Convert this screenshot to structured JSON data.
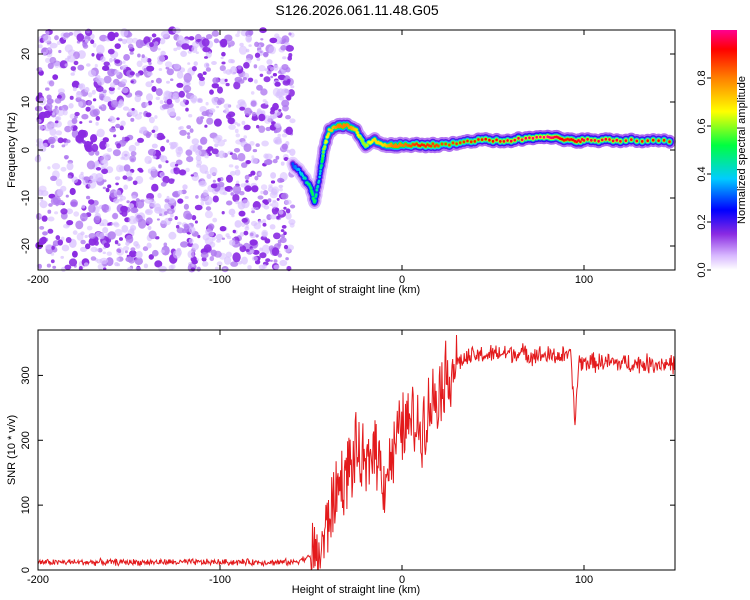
{
  "title": "S126.2026.061.11.48.G05",
  "colors": {
    "snr_line": "#e31a1c",
    "scatter_point": "#8a2be2"
  },
  "chart_data": [
    {
      "type": "heatmap",
      "title": "S126.2026.061.11.48.G05",
      "xlabel": "Height of straight line (km)",
      "ylabel": "Frequency (Hz)",
      "xlim": [
        -200,
        150
      ],
      "ylim": [
        -25,
        25
      ],
      "xticks": [
        -200,
        -100,
        0,
        100
      ],
      "yticks": [
        -20,
        -10,
        0,
        10,
        20
      ],
      "colorbar": {
        "label": "Normalized spectral amplitude",
        "range": [
          0,
          1
        ],
        "ticks": [
          "0.0",
          "0.2",
          "0.4",
          "0.6",
          "0.8"
        ]
      },
      "noise_region_x": [
        -200,
        -60
      ],
      "signal_track": {
        "x": [
          -60,
          -55,
          -50,
          -48,
          -45,
          -43,
          -40,
          -35,
          -30,
          -25,
          -22,
          -20,
          -15,
          -10,
          -5,
          0,
          10,
          20,
          40,
          60,
          80,
          90,
          100,
          120,
          150
        ],
        "freq": [
          -3,
          -5,
          -8,
          -11,
          -5,
          0,
          4,
          5,
          5,
          4,
          2,
          1,
          2,
          1,
          1,
          1,
          1,
          1,
          2,
          2,
          3,
          2,
          2,
          2,
          2
        ],
        "amplitude": [
          0.3,
          0.4,
          0.5,
          0.5,
          0.4,
          0.6,
          0.7,
          0.8,
          0.8,
          0.7,
          0.6,
          0.6,
          0.7,
          0.7,
          0.8,
          0.8,
          0.9,
          0.85,
          0.9,
          0.95,
          1.0,
          0.9,
          0.95,
          0.95,
          0.9
        ]
      }
    },
    {
      "type": "line",
      "xlabel": "Height of straight line (km)",
      "ylabel": "SNR (10 * v/v)",
      "xlim": [
        -200,
        150
      ],
      "ylim": [
        0,
        370
      ],
      "xticks": [
        -200,
        -100,
        0,
        100
      ],
      "yticks": [
        0,
        100,
        200,
        300
      ],
      "series": [
        {
          "name": "SNR",
          "x": [
            -200,
            -150,
            -100,
            -60,
            -45,
            -40,
            -35,
            -30,
            -25,
            -20,
            -15,
            -10,
            -5,
            0,
            5,
            10,
            15,
            20,
            25,
            30,
            40,
            60,
            80,
            93,
            95,
            97,
            110,
            130,
            150
          ],
          "y": [
            12,
            12,
            12,
            12,
            25,
            80,
            130,
            150,
            180,
            150,
            200,
            140,
            180,
            220,
            230,
            220,
            250,
            280,
            300,
            320,
            330,
            335,
            330,
            330,
            220,
            320,
            320,
            318,
            318
          ]
        }
      ]
    }
  ]
}
